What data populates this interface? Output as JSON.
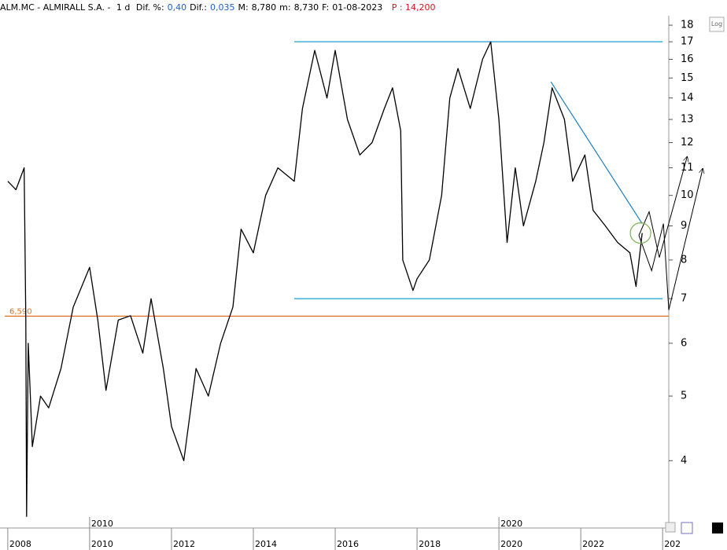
{
  "header": {
    "title": "ALM.MC - ALMIRALL S.A. -",
    "interval": "1 d",
    "fields": [
      {
        "label": "Dif. %:",
        "value": "0,40"
      },
      {
        "label": "Dif.:",
        "value": "0,035"
      },
      {
        "label": "M:",
        "value": "8,780"
      },
      {
        "label": "m:",
        "value": "8,730"
      },
      {
        "label": "F:",
        "value": "01-08-2023"
      }
    ],
    "last": "P : 14,200",
    "log_button": "Log"
  },
  "chart_data": {
    "type": "line",
    "log_scale": true,
    "x": [
      2008.0,
      2008.2,
      2008.4,
      2008.44,
      2008.46,
      2008.5,
      2008.6,
      2008.8,
      2009.0,
      2009.3,
      2009.6,
      2010.0,
      2010.2,
      2010.4,
      2010.7,
      2011.0,
      2011.3,
      2011.5,
      2011.8,
      2012.0,
      2012.3,
      2012.6,
      2012.9,
      2013.2,
      2013.5,
      2013.7,
      2014.0,
      2014.3,
      2014.6,
      2015.0,
      2015.2,
      2015.5,
      2015.8,
      2016.0,
      2016.3,
      2016.6,
      2016.9,
      2017.2,
      2017.4,
      2017.6,
      2017.65,
      2017.9,
      2018.0,
      2018.3,
      2018.6,
      2018.8,
      2019.0,
      2019.3,
      2019.6,
      2019.8,
      2020.0,
      2020.2,
      2020.4,
      2020.6,
      2020.9,
      2021.1,
      2021.3,
      2021.6,
      2021.8,
      2022.1,
      2022.3,
      2022.6,
      2022.9,
      2023.2,
      2023.35,
      2023.5
    ],
    "series": [
      {
        "color": "#000000",
        "values": [
          10.5,
          10.2,
          11.0,
          6.5,
          3.3,
          6.0,
          4.2,
          5.0,
          4.8,
          5.5,
          6.8,
          7.8,
          6.5,
          5.1,
          6.5,
          6.6,
          5.8,
          7.0,
          5.5,
          4.5,
          4.0,
          5.5,
          5.0,
          6.0,
          6.8,
          8.9,
          8.2,
          10.0,
          11.0,
          10.5,
          13.5,
          16.5,
          14.0,
          16.5,
          13.0,
          11.5,
          12.0,
          13.5,
          14.5,
          12.5,
          8.0,
          7.2,
          7.5,
          8.0,
          10.0,
          14.0,
          15.5,
          13.5,
          16.0,
          17.0,
          13.0,
          8.5,
          11.0,
          9.0,
          10.5,
          12.0,
          14.5,
          13.0,
          10.5,
          11.5,
          9.5,
          9.0,
          8.5,
          8.2,
          7.3,
          8.78
        ]
      }
    ],
    "xlim": [
      2007.81,
      2024.15
    ],
    "ylim": [
      3.17,
      18.6
    ],
    "xticks": [
      2008,
      2010,
      2012,
      2014,
      2016,
      2018,
      2020,
      2022,
      {
        "value": 2024,
        "label": "202"
      }
    ],
    "period_labels": [
      2010,
      2020
    ],
    "yticks": [
      4,
      5,
      6,
      7,
      8,
      9,
      10,
      11,
      12,
      13,
      14,
      15,
      16,
      17,
      18
    ],
    "hline": {
      "value": 6.59,
      "label": "6,590",
      "color": "#e07020"
    },
    "reference_lines": [
      {
        "x": [
          2015.0,
          2024.0
        ],
        "y": [
          17.0,
          17.0
        ],
        "color": "#1a9fd0"
      },
      {
        "x": [
          2015.0,
          2024.0
        ],
        "y": [
          7.0,
          7.0
        ],
        "color": "#1a9fd0"
      },
      {
        "x": [
          2021.27,
          2023.5
        ],
        "y": [
          14.8,
          9.07
        ],
        "color": "#1a7fc0"
      }
    ],
    "projections": [
      {
        "x": [
          2023.42,
          2023.67,
          2023.92,
          2024.6
        ],
        "y": [
          8.71,
          9.45,
          8.07,
          11.43
        ],
        "color": "#000000"
      },
      {
        "x": [
          2023.42,
          2023.73,
          2024.02,
          2024.15,
          2024.98
        ],
        "y": [
          8.71,
          7.71,
          9.07,
          6.73,
          10.97
        ],
        "color": "#000000"
      }
    ],
    "circle": {
      "x": 2023.46,
      "y": 8.78,
      "color": "#7ab050"
    }
  }
}
